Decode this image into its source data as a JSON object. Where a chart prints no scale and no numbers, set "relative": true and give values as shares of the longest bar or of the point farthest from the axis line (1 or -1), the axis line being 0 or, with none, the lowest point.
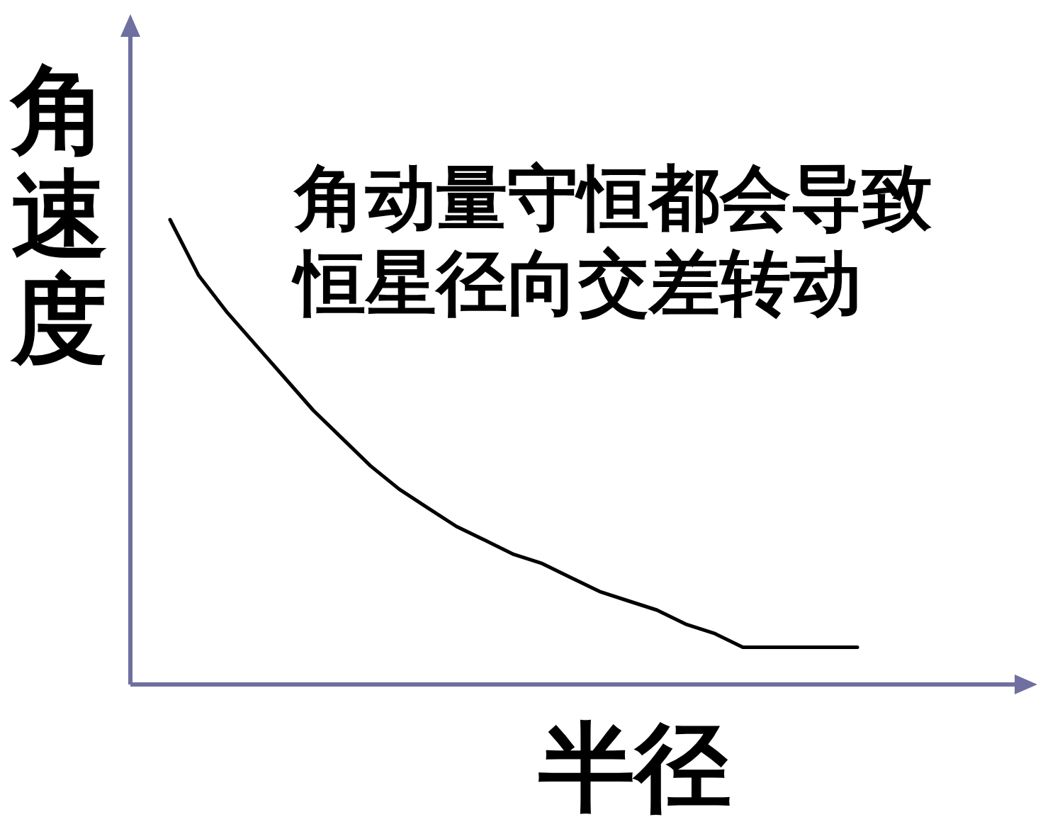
{
  "chart_data": {
    "type": "line",
    "relative": true,
    "xlabel": "半径",
    "ylabel": "角速度",
    "annotations": [
      "角动量守恒都会导致恒星径向交差转动"
    ],
    "categories": [
      null,
      null,
      null,
      null,
      null,
      null,
      null,
      null,
      null,
      null,
      null,
      null,
      null,
      null,
      null,
      null,
      null,
      null,
      null,
      null,
      null,
      null,
      null,
      null,
      null
    ],
    "series": [
      {
        "color": "#000000",
        "values": [
          1.0,
          0.88,
          0.8,
          0.73,
          0.66,
          0.59,
          0.53,
          0.47,
          0.42,
          0.38,
          0.34,
          0.31,
          0.28,
          0.26,
          0.23,
          0.2,
          0.18,
          0.16,
          0.13,
          0.11,
          0.08,
          0.08,
          0.08,
          0.08,
          0.08
        ]
      }
    ]
  }
}
